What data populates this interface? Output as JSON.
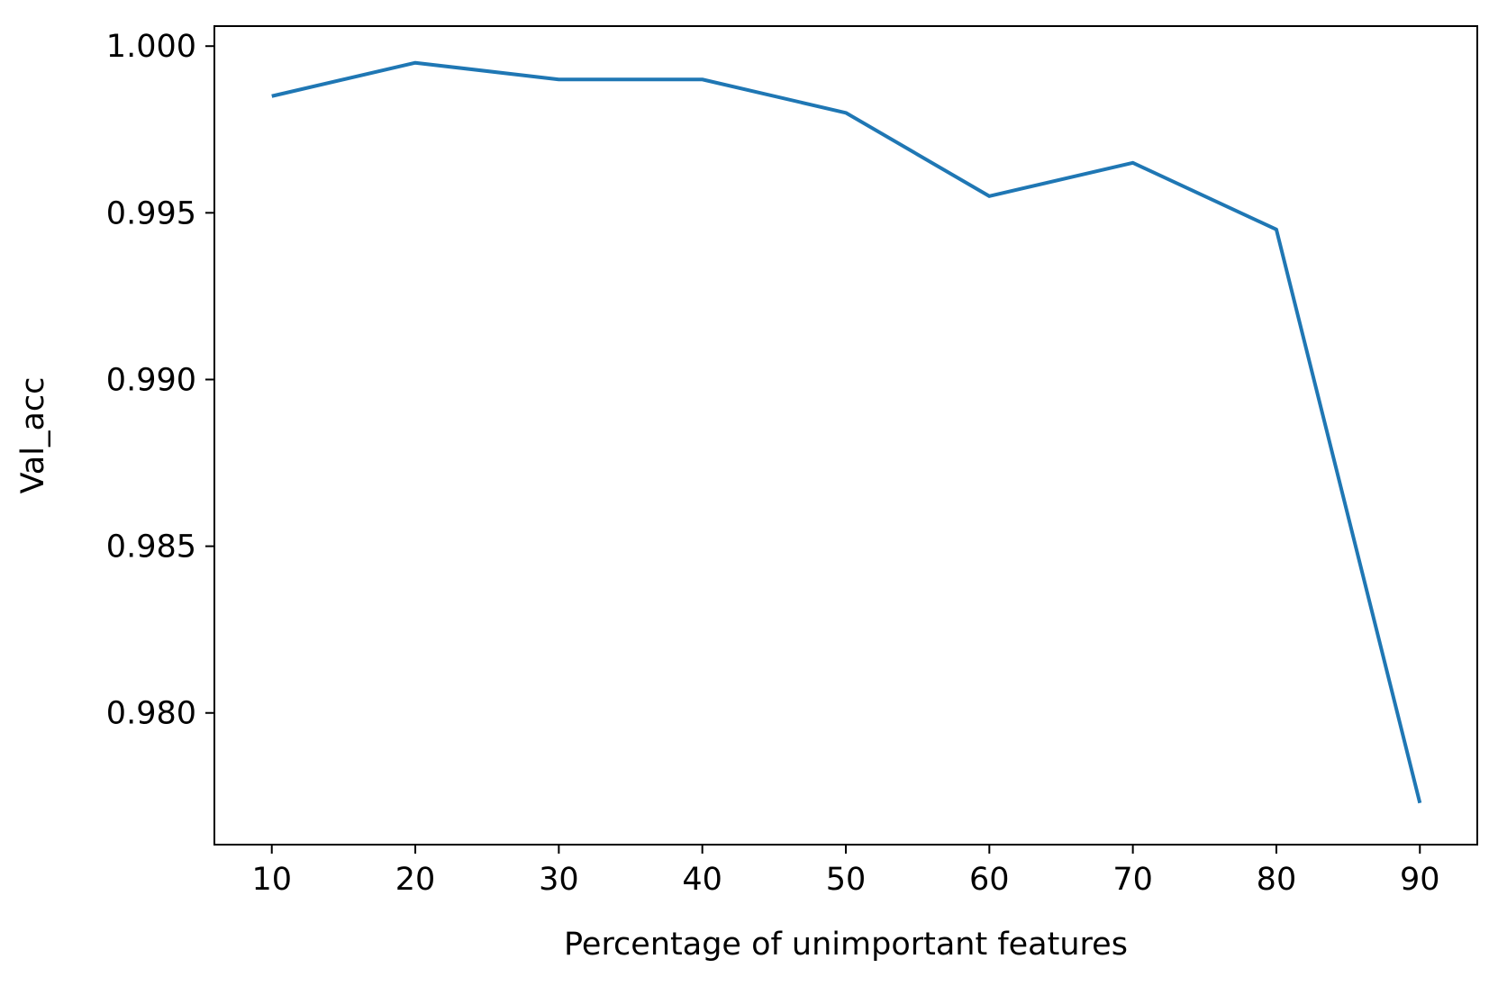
{
  "chart_data": {
    "type": "line",
    "title": "",
    "xlabel": "Percentage of unimportant features",
    "ylabel": "Val_acc",
    "xlim": [
      6,
      94
    ],
    "ylim": [
      0.97605,
      1.0006
    ],
    "x_ticks": [
      10,
      20,
      30,
      40,
      50,
      60,
      70,
      80,
      90
    ],
    "x_tick_labels": [
      "10",
      "20",
      "30",
      "40",
      "50",
      "60",
      "70",
      "80",
      "90"
    ],
    "y_ticks": [
      0.98,
      0.985,
      0.99,
      0.995,
      1.0
    ],
    "y_tick_labels": [
      "0.980",
      "0.985",
      "0.990",
      "0.995",
      "1.000"
    ],
    "grid": false,
    "legend": "none",
    "series": [
      {
        "color": "#1f77b4",
        "x": [
          10,
          20,
          30,
          40,
          50,
          60,
          70,
          80,
          90
        ],
        "values": [
          0.9985,
          0.9995,
          0.999,
          0.999,
          0.998,
          0.9955,
          0.9965,
          0.9945,
          0.9773
        ]
      }
    ]
  }
}
